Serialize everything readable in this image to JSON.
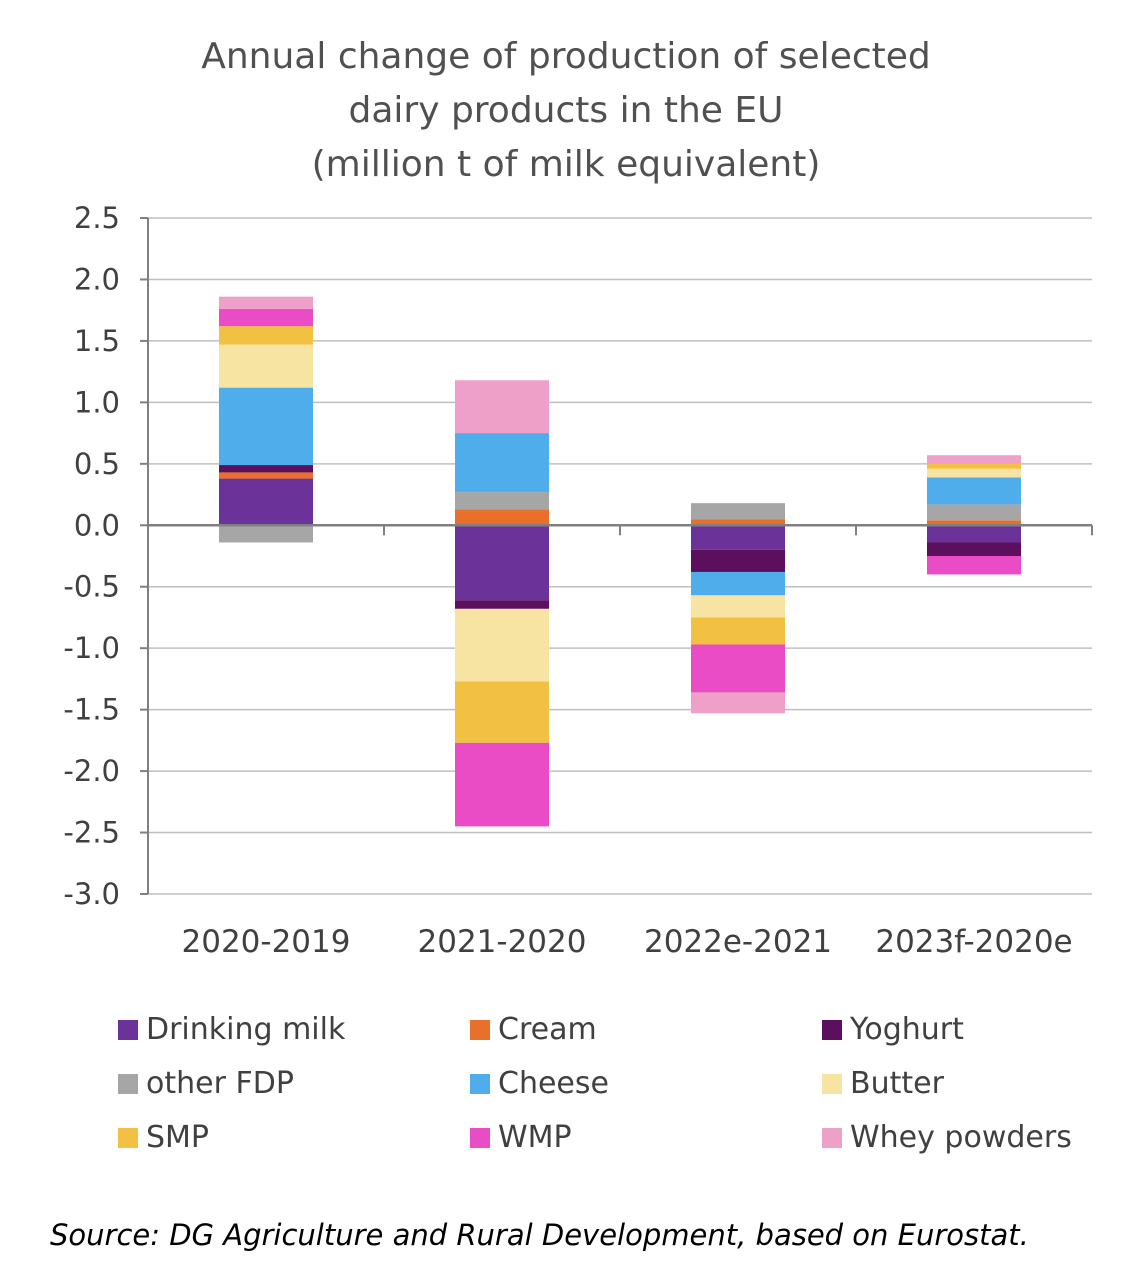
{
  "chart_data": {
    "type": "bar",
    "stacked": true,
    "title_lines": [
      "Annual change of production of selected",
      "dairy products in the EU",
      "(million t of milk equivalent)"
    ],
    "categories": [
      "2020-2019",
      "2021-2020",
      "2022e-2021",
      "2023f-2020e"
    ],
    "ylim": [
      -3.0,
      2.5
    ],
    "yticks": [
      "2.5",
      "2.0",
      "1.5",
      "1.0",
      "0.5",
      "0.0",
      "-0.5",
      "-1.0",
      "-1.5",
      "-2.0",
      "-2.5",
      "-3.0"
    ],
    "grid": true,
    "legend_position": "bottom",
    "series": [
      {
        "name": "Drinking milk",
        "color": "#6b3399",
        "values": [
          0.38,
          -0.61,
          -0.2,
          -0.14
        ]
      },
      {
        "name": "Cream",
        "color": "#e8702a",
        "values": [
          0.05,
          0.13,
          0.05,
          0.04
        ]
      },
      {
        "name": "Yoghurt",
        "color": "#5c0f5c",
        "values": [
          0.06,
          -0.07,
          -0.18,
          -0.11
        ]
      },
      {
        "name": "other FDP",
        "color": "#a6a6a6",
        "values": [
          -0.14,
          0.14,
          0.13,
          0.13
        ]
      },
      {
        "name": "Cheese",
        "color": "#4eadea",
        "values": [
          0.63,
          0.48,
          -0.19,
          0.22
        ]
      },
      {
        "name": "Butter",
        "color": "#f8e4a2",
        "values": [
          0.35,
          -0.59,
          -0.18,
          0.07
        ]
      },
      {
        "name": "SMP",
        "color": "#f2c042",
        "values": [
          0.15,
          -0.5,
          -0.22,
          0.04
        ]
      },
      {
        "name": "WMP",
        "color": "#e94cc4",
        "values": [
          0.14,
          -0.68,
          -0.39,
          -0.15
        ]
      },
      {
        "name": "Whey powders",
        "color": "#efa0c8",
        "values": [
          0.1,
          0.43,
          -0.17,
          0.07
        ]
      }
    ]
  },
  "source_note": "Source: DG Agriculture and Rural Development, based on Eurostat."
}
